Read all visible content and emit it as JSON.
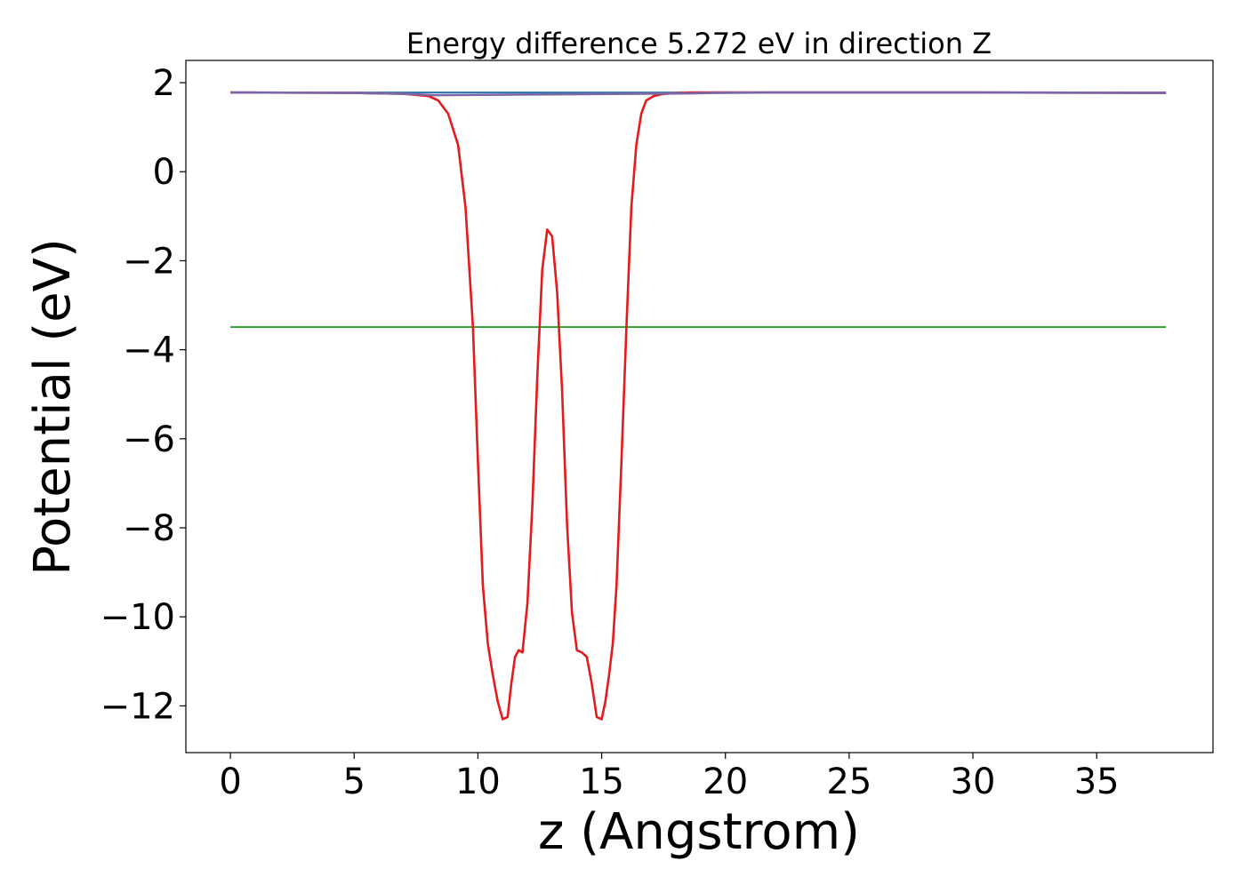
{
  "chart_data": {
    "type": "line",
    "title": "Energy difference 5.272 eV in direction Z",
    "xlabel": "z (Angstrom)",
    "ylabel": "Potential (eV)",
    "xlim": [
      -1.8,
      39.7
    ],
    "ylim": [
      -13.05,
      2.5
    ],
    "xticks": [
      0,
      5,
      10,
      15,
      20,
      25,
      30,
      35
    ],
    "yticks": [
      2,
      0,
      -2,
      -4,
      -6,
      -8,
      -10,
      -12
    ],
    "xtick_labels": [
      "0",
      "5",
      "10",
      "15",
      "20",
      "25",
      "30",
      "35"
    ],
    "ytick_labels": [
      "2",
      "0",
      "−2",
      "−4",
      "−6",
      "−8",
      "−10",
      "−12"
    ],
    "grid": false,
    "legend": "none",
    "series": [
      {
        "color": "#1f77b4",
        "x": [
          0,
          37.8
        ],
        "y": [
          1.78,
          1.78
        ]
      },
      {
        "color": "#2ca02c",
        "x": [
          0,
          37.8
        ],
        "y": [
          -3.49,
          -3.49
        ]
      },
      {
        "color": "#e41a1c",
        "x": [
          0,
          5,
          7,
          8,
          8.4,
          8.8,
          9.2,
          9.5,
          9.8,
          10.0,
          10.2,
          10.4,
          10.6,
          10.8,
          11.0,
          11.2,
          11.35,
          11.5,
          11.65,
          11.8,
          12.0,
          12.2,
          12.4,
          12.6,
          12.8,
          13.0,
          13.2,
          13.4,
          13.6,
          13.8,
          14.0,
          14.2,
          14.4,
          14.6,
          14.8,
          15.0,
          15.15,
          15.3,
          15.45,
          15.6,
          15.8,
          16.0,
          16.2,
          16.4,
          16.6,
          16.8,
          17.1,
          17.4,
          17.8,
          18.2,
          18.6,
          19.5,
          22,
          30,
          37.8
        ],
        "y": [
          1.78,
          1.77,
          1.75,
          1.7,
          1.6,
          1.3,
          0.6,
          -0.8,
          -3.5,
          -6.5,
          -9.3,
          -10.6,
          -11.3,
          -11.9,
          -12.3,
          -12.25,
          -11.5,
          -10.9,
          -10.75,
          -10.8,
          -9.7,
          -7.5,
          -4.6,
          -2.2,
          -1.3,
          -1.45,
          -2.7,
          -4.9,
          -7.9,
          -9.9,
          -10.75,
          -10.8,
          -10.9,
          -11.5,
          -12.25,
          -12.3,
          -11.9,
          -11.3,
          -10.6,
          -9.3,
          -6.5,
          -3.5,
          -0.8,
          0.6,
          1.3,
          1.6,
          1.7,
          1.74,
          1.76,
          1.77,
          1.78,
          1.78,
          1.78,
          1.78,
          1.77
        ]
      },
      {
        "color": "#7b68a8",
        "x": [
          0,
          5,
          7,
          8.2,
          18.6,
          19.5,
          22,
          30,
          37.8
        ],
        "y": [
          1.78,
          1.77,
          1.75,
          1.72,
          1.76,
          1.77,
          1.78,
          1.78,
          1.77
        ]
      }
    ]
  }
}
